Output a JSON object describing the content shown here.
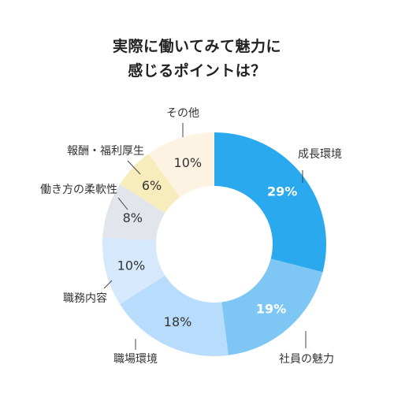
{
  "chart_data": {
    "type": "pie",
    "title": [
      "実際に働いてみて魅力に",
      "感じるポイントは？"
    ],
    "unit": "%",
    "slices": [
      {
        "label": "成長環境",
        "value": 29,
        "color": "#2aa9ee",
        "text_color": "#ffffff",
        "bold": true
      },
      {
        "label": "社員の魅力",
        "value": 19,
        "color": "#7ec7f5",
        "text_color": "#ffffff",
        "bold": true
      },
      {
        "label": "職場環境",
        "value": 18,
        "color": "#b8dcfb",
        "text_color": "#333333",
        "bold": false
      },
      {
        "label": "職務内容",
        "value": 10,
        "color": "#d6e9fc",
        "text_color": "#333333",
        "bold": false
      },
      {
        "label": "働き方の柔軟性",
        "value": 8,
        "color": "#e2e6ec",
        "text_color": "#333333",
        "bold": false
      },
      {
        "label": "報酬・福利厚生",
        "value": 6,
        "color": "#f7ecbc",
        "text_color": "#333333",
        "bold": false
      },
      {
        "label": "その他",
        "value": 10,
        "color": "#fdf3e2",
        "text_color": "#333333",
        "bold": false
      }
    ]
  }
}
